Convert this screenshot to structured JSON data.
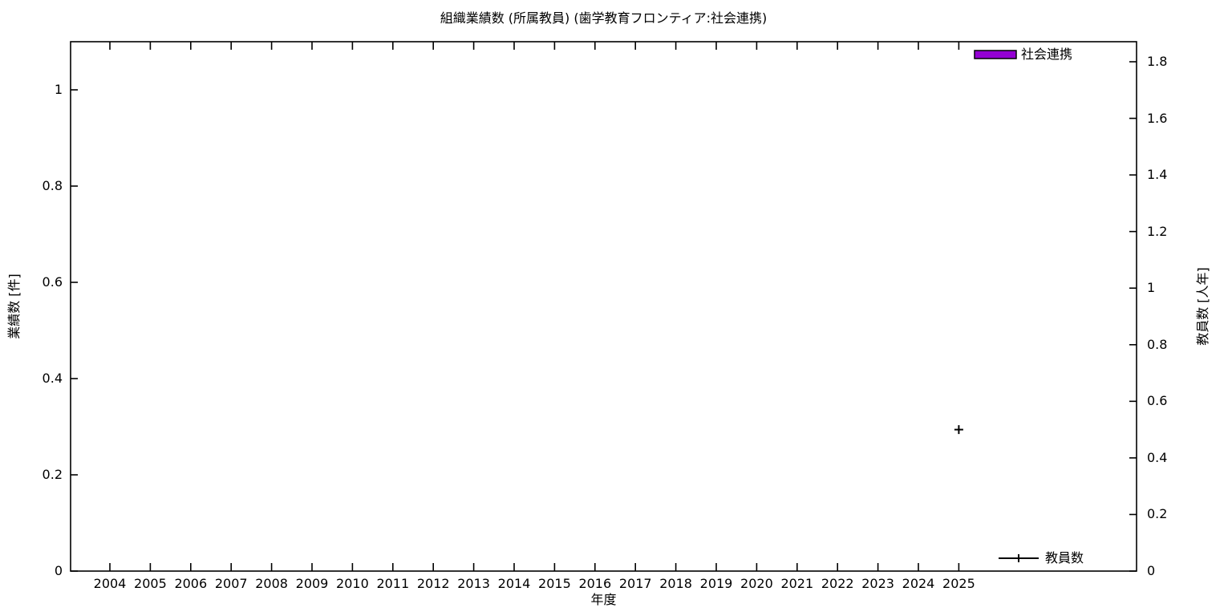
{
  "title": "組織業績数 (所属教員) (歯学教育フロンティア:社会連携)",
  "chart_data": {
    "type": "bar+line dual-axis (gnuplot style)",
    "title": "組織業績数 (所属教員) (歯学教育フロンティア:社会連携)",
    "x_axis": {
      "label": "年度",
      "ticks": [
        2004,
        2005,
        2006,
        2007,
        2008,
        2009,
        2010,
        2011,
        2012,
        2013,
        2014,
        2015,
        2016,
        2017,
        2018,
        2019,
        2020,
        2021,
        2022,
        2023,
        2024,
        2025
      ],
      "range_approx": [
        2003,
        2029.4
      ]
    },
    "y_left": {
      "label": "業績数 [件]",
      "ticks": [
        "0",
        "0.2",
        "0.4",
        "0.6",
        "0.8",
        "1"
      ],
      "range_approx": [
        0,
        1.1
      ],
      "grid": false
    },
    "y_right": {
      "label": "教員数 [人年]",
      "ticks": [
        "0",
        "0.2",
        "0.4",
        "0.6",
        "0.8",
        "1",
        "1.2",
        "1.4",
        "1.6",
        "1.8"
      ],
      "range_approx": [
        0,
        1.87
      ],
      "grid": false
    },
    "series": [
      {
        "name": "社会連携",
        "type": "bar",
        "axis": "left",
        "color": "#9400d3",
        "points": []
      },
      {
        "name": "教員数",
        "type": "line-with-cross-markers",
        "axis": "right",
        "color": "#000000",
        "points": [
          {
            "x": 2025,
            "y": 0.5
          }
        ]
      }
    ],
    "legend": [
      {
        "label": "社会連携",
        "swatch": "filled-box",
        "color": "#9400d3",
        "position": "top-right-inside"
      },
      {
        "label": "教員数",
        "swatch": "line-with-cross",
        "color": "#000000",
        "position": "bottom-right-inside"
      }
    ],
    "colors": {
      "background": "#ffffff",
      "border": "#000000",
      "text": "#000000",
      "bar_fill": "#9400d3"
    }
  }
}
